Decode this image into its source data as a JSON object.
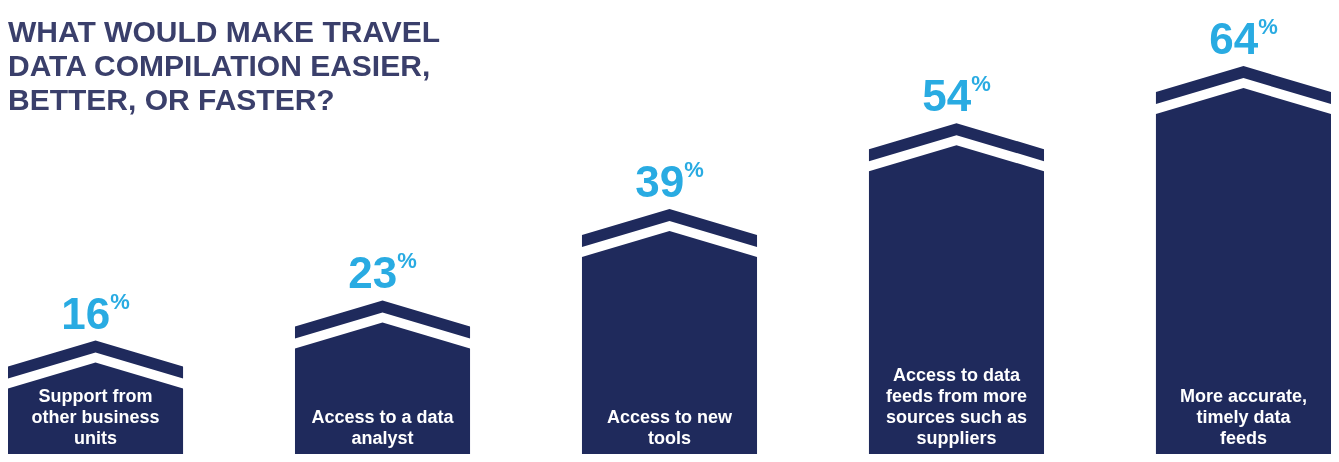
{
  "chart_data": {
    "type": "bar",
    "title": "WHAT WOULD MAKE TRAVEL DATA COMPILATION EASIER, BETTER, OR FASTER?",
    "categories": [
      "Support from other business units",
      "Access to a data analyst",
      "Access to new tools",
      "Access to data feeds from more sources such as suppliers",
      "More accurate, timely data feeds"
    ],
    "values": [
      16,
      23,
      39,
      54,
      64
    ],
    "value_labels": [
      "16$^{%}$",
      "23$^{%}$",
      "39$^{%}$",
      "54$^{%}$",
      "64$^{%}$"
    ],
    "color": "#1f2a5c"
  }
}
